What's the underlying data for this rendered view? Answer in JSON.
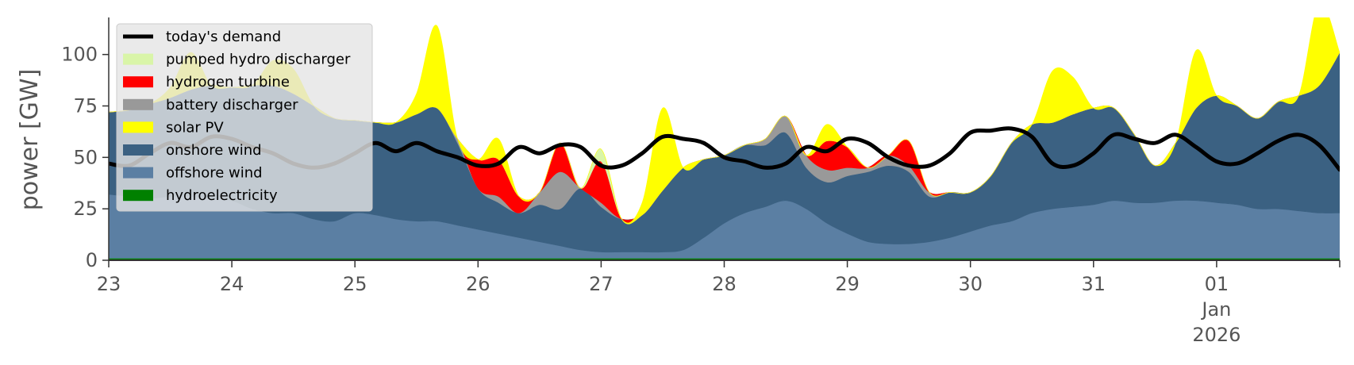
{
  "chart_data": {
    "type": "area",
    "title": "",
    "xlabel": "",
    "ylabel": "power [GW]",
    "x_start": "2025-12-23 00:00",
    "xlim": [
      "2025-12-23",
      "2026-01-02"
    ],
    "ylim": [
      0,
      118
    ],
    "yticks": [
      0,
      25,
      50,
      75,
      100
    ],
    "x_ticks": [
      {
        "date": "2025-12-23",
        "label": "23"
      },
      {
        "date": "2025-12-24",
        "label": "24"
      },
      {
        "date": "2025-12-25",
        "label": "25"
      },
      {
        "date": "2025-12-26",
        "label": "26"
      },
      {
        "date": "2025-12-27",
        "label": "27"
      },
      {
        "date": "2025-12-28",
        "label": "28"
      },
      {
        "date": "2025-12-29",
        "label": "29"
      },
      {
        "date": "2025-12-30",
        "label": "30"
      },
      {
        "date": "2025-12-31",
        "label": "31"
      },
      {
        "date": "2026-01-01",
        "label": "01",
        "label2": "Jan",
        "label3": "2026"
      }
    ],
    "grid": false,
    "legend_position": "upper-left",
    "time_step_hours": 4,
    "stacked_series": [
      {
        "name": "hydroelectricity",
        "color": "#008000",
        "values": [
          1,
          1,
          1,
          1,
          1,
          1,
          1,
          1,
          1,
          1,
          1,
          1,
          1,
          1,
          1,
          1,
          1,
          1,
          1,
          1,
          1,
          1,
          1,
          1,
          1,
          1,
          1,
          1,
          1,
          1,
          1,
          1,
          1,
          1,
          1,
          1,
          1,
          1,
          1,
          1,
          1,
          1,
          1,
          1,
          1,
          1,
          1,
          1,
          1,
          1,
          1,
          1,
          1,
          1,
          1,
          1,
          1,
          1,
          1,
          1,
          1
        ]
      },
      {
        "name": "offshore wind",
        "color": "#5b7fa3",
        "values": [
          31,
          30,
          29,
          30,
          30,
          29,
          28,
          24,
          22,
          22,
          19,
          18,
          22,
          21,
          19,
          18,
          18,
          16,
          14,
          12,
          10,
          8,
          6,
          4,
          3,
          3,
          3,
          3,
          4,
          10,
          17,
          22,
          25,
          28,
          24,
          17,
          12,
          8,
          7,
          7,
          8,
          10,
          13,
          16,
          18,
          22,
          24,
          25,
          26,
          28,
          27,
          27,
          28,
          28,
          27,
          26,
          24,
          24,
          23,
          22,
          22
        ]
      },
      {
        "name": "onshore wind",
        "color": "#3b6182",
        "values": [
          40,
          42,
          46,
          48,
          52,
          55,
          55,
          60,
          62,
          58,
          55,
          50,
          45,
          45,
          47,
          52,
          55,
          40,
          20,
          15,
          12,
          18,
          18,
          30,
          22,
          16,
          18,
          30,
          40,
          38,
          33,
          33,
          30,
          33,
          20,
          20,
          28,
          34,
          38,
          35,
          22,
          22,
          19,
          24,
          38,
          43,
          42,
          45,
          47,
          45,
          33,
          18,
          28,
          45,
          52,
          48,
          44,
          52,
          56,
          62,
          78
        ]
      },
      {
        "name": "battery discharger",
        "color": "#999999",
        "values": [
          0,
          0,
          0,
          0,
          0,
          0,
          0,
          0,
          0,
          0,
          0,
          0,
          0,
          0,
          0,
          0,
          0,
          2,
          0,
          3,
          0,
          6,
          18,
          0,
          2,
          0,
          0,
          0,
          0,
          0,
          0,
          0,
          3,
          8,
          6,
          6,
          4,
          2,
          5,
          3,
          2,
          0,
          0,
          0,
          0,
          0,
          0,
          0,
          0,
          0,
          0,
          0,
          0,
          0,
          0,
          0,
          0,
          0,
          0,
          0,
          0
        ]
      },
      {
        "name": "hydrogen turbine",
        "color": "#ff0000",
        "values": [
          0,
          0,
          0,
          0,
          0,
          0,
          0,
          0,
          0,
          0,
          0,
          0,
          0,
          0,
          0,
          0,
          0,
          0,
          14,
          18,
          8,
          0,
          14,
          0,
          20,
          0,
          0,
          0,
          0,
          0,
          0,
          0,
          0,
          0,
          0,
          14,
          10,
          0,
          0,
          12,
          0,
          0,
          0,
          0,
          0,
          0,
          0,
          0,
          0,
          0,
          0,
          0,
          0,
          0,
          0,
          0,
          0,
          0,
          0,
          0,
          0
        ]
      },
      {
        "name": "pumped hydro discharger",
        "color": "#d9f5a8",
        "values": [
          0,
          0,
          0,
          0,
          0,
          0,
          0,
          0,
          0,
          0,
          0,
          0,
          0,
          0,
          0,
          0,
          0,
          0,
          0,
          0,
          0,
          0,
          0,
          0,
          6,
          0,
          0,
          0,
          0,
          0,
          0,
          0,
          0,
          0,
          0,
          0,
          0,
          0,
          0,
          0,
          0,
          0,
          0,
          0,
          0,
          0,
          0,
          0,
          0,
          0,
          0,
          0,
          0,
          0,
          0,
          0,
          0,
          0,
          0,
          0,
          0
        ]
      },
      {
        "name": "solar PV",
        "color": "#ffff00",
        "values": [
          0,
          0,
          0,
          5,
          18,
          0,
          0,
          0,
          12,
          12,
          0,
          0,
          0,
          0,
          0,
          10,
          40,
          0,
          0,
          10,
          0,
          0,
          0,
          0,
          0,
          0,
          6,
          40,
          0,
          0,
          0,
          0,
          0,
          0,
          0,
          8,
          0,
          0,
          0,
          0,
          0,
          0,
          0,
          0,
          0,
          0,
          25,
          18,
          0,
          0,
          0,
          0,
          0,
          28,
          0,
          0,
          0,
          0,
          0,
          40,
          0
        ]
      }
    ],
    "demand": {
      "name": "today's demand",
      "color": "#000000",
      "values": [
        47,
        46,
        52,
        57,
        55,
        60,
        59,
        55,
        52,
        47,
        45,
        47,
        52,
        57,
        53,
        57,
        53,
        50,
        46,
        47,
        55,
        52,
        56,
        55,
        46,
        46,
        52,
        60,
        59,
        57,
        50,
        48,
        45,
        47,
        55,
        53,
        59,
        57,
        50,
        46,
        46,
        52,
        62,
        63,
        64,
        60,
        47,
        46,
        52,
        61,
        59,
        57,
        61,
        55,
        48,
        47,
        52,
        58,
        61,
        56,
        44
      ]
    },
    "legend": [
      {
        "label": "today's demand",
        "kind": "line",
        "color": "#000000"
      },
      {
        "label": "pumped hydro discharger",
        "kind": "patch",
        "color": "#d9f5a8"
      },
      {
        "label": "hydrogen turbine",
        "kind": "patch",
        "color": "#ff0000"
      },
      {
        "label": "battery discharger",
        "kind": "patch",
        "color": "#999999"
      },
      {
        "label": "solar PV",
        "kind": "patch",
        "color": "#ffff00"
      },
      {
        "label": "onshore wind",
        "kind": "patch",
        "color": "#3b6182"
      },
      {
        "label": "offshore wind",
        "kind": "patch",
        "color": "#5b7fa3"
      },
      {
        "label": "hydroelectricity",
        "kind": "patch",
        "color": "#008000"
      }
    ]
  }
}
